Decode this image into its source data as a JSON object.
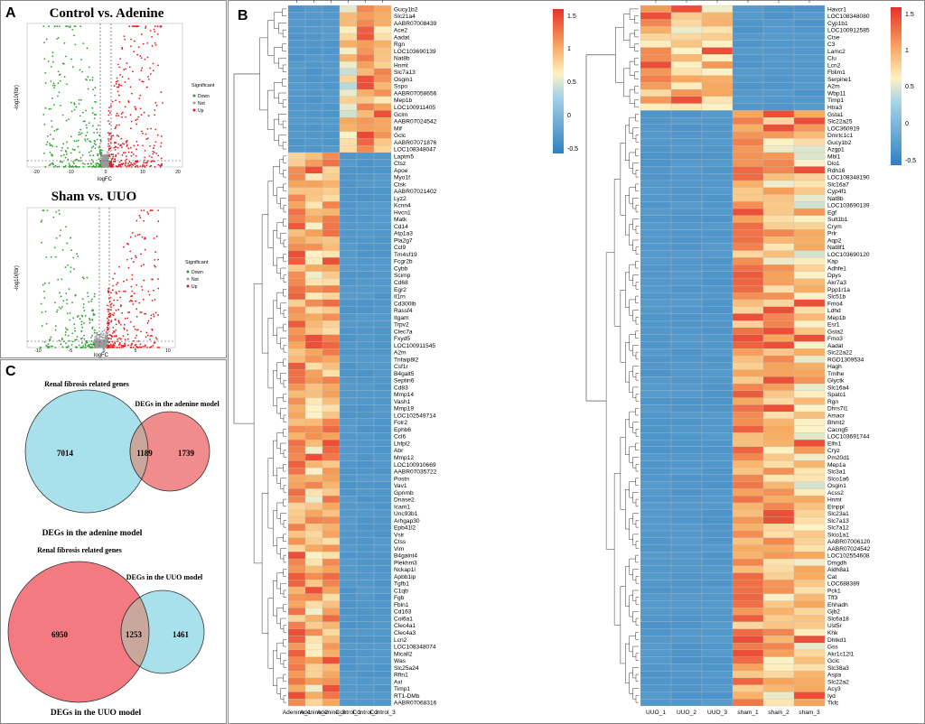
{
  "panels": {
    "a": {
      "label": "A",
      "volcano_top": {
        "title": "Control vs. Adenine",
        "xlabel": "logFC",
        "ylabel": "-log10(fdr)",
        "xticks": [
          "-20",
          "-10",
          "0",
          "10",
          "20"
        ],
        "legend_title": "Significant",
        "legend": [
          {
            "name": "Down",
            "color": "#2ca02c"
          },
          {
            "name": "Not",
            "color": "#9a9a9a"
          },
          {
            "name": "Up",
            "color": "#e31a1c"
          }
        ]
      },
      "volcano_bottom": {
        "title": "Sham vs. UUO",
        "xlabel": "logFC",
        "ylabel": "-log10(fdr)",
        "xticks": [
          "-10",
          "-5",
          "0",
          "5",
          "10"
        ],
        "legend_title": "Significant",
        "legend": [
          {
            "name": "Down",
            "color": "#2ca02c"
          },
          {
            "name": "Not",
            "color": "#9a9a9a"
          },
          {
            "name": "Up",
            "color": "#e31a1c"
          }
        ]
      }
    },
    "b": {
      "label": "B"
    },
    "c": {
      "label": "C",
      "venn_top": {
        "left_title": "Renal fibrosis related genes",
        "right_title": "DEGs in the adenine model",
        "left_only": "7014",
        "overlap": "1189",
        "right_only": "1739",
        "caption": "DEGs in the adenine model"
      },
      "venn_bottom": {
        "left_title": "Renal fibrosis related genes",
        "right_title": "DEGs in the UUO model",
        "left_only": "6950",
        "overlap": "1253",
        "right_only": "1461",
        "caption": "DEGs in the UUO model"
      }
    }
  },
  "colorbar": {
    "ticks": [
      "1.5",
      "1",
      "0.5",
      "0",
      "-0.5"
    ]
  },
  "chart_data": [
    {
      "type": "heatmap",
      "title": "",
      "columns": [
        "Adenine_1",
        "Adenine_2",
        "Adenine_3",
        "Control_1",
        "Control_2",
        "Control_3"
      ],
      "value_range": [
        -1,
        1.6
      ],
      "groups": [
        {
          "genes": [
            "Gucy1b2",
            "Slc21a4",
            "AABR07008439",
            "Ace2",
            "Aadat",
            "Rgn",
            "LOC103690139",
            "Nat8b",
            "Hnmt",
            "Slc7a13",
            "Osgin1",
            "Sspo",
            "AABR07058656",
            "Mep1b",
            "LOC100911405",
            "Gclm",
            "AABR07024542",
            "Mif",
            "Gclc",
            "AABR07071876",
            "LOC108348047"
          ],
          "values": [
            -0.6,
            -0.6,
            -0.6,
            0.4,
            1.0,
            0.6
          ]
        },
        {
          "genes": [
            "Laptm5",
            "Ctsz",
            "Apoe",
            "Myo1f",
            "Ctsk",
            "AABR07021402",
            "Lyz2",
            "Kcnn4",
            "Hvcn1",
            "Matk",
            "Cd14",
            "Atp1a3",
            "Pla2g7",
            "Ccl9",
            "Tm4sf19",
            "Fcgr2b",
            "Cybb",
            "Scimp",
            "Cd68",
            "Egr2",
            "Il1rn",
            "Cd300lb",
            "Rassf4",
            "Itgam",
            "Trpv2",
            "Clec7a",
            "Fxyd5",
            "LOC100911545",
            "A2m",
            "Tnfaip8l2",
            "Csf1r",
            "B4galt5",
            "Septin6",
            "Cd83",
            "Mmp14",
            "Vash1",
            "Mmp19",
            "LOC102549714",
            "Folr2",
            "Ephb6",
            "Ccl6",
            "Lhfpl2",
            "Abr",
            "Mmp12",
            "LOC100910669",
            "AABR07035722",
            "Postn",
            "Vav1",
            "Gpnmb",
            "Dnase2",
            "Icam1",
            "Unc93b1",
            "Arhgap30",
            "Epb41l2",
            "Vsir",
            "Ctss",
            "Vim",
            "B4galnt4",
            "Plekhm3",
            "Nckap1l",
            "Apbb1ip",
            "Tgfb1",
            "C1qb",
            "Fgb",
            "Fbln1",
            "Cd163",
            "Col6a1",
            "Clec4a1",
            "Clec4a3",
            "Lcn2",
            "LOC108348074",
            "Micall2",
            "Was",
            "Slc25a24",
            "Rftn1",
            "Axl",
            "Timp1",
            "RT1-DMb",
            "AABR07068316"
          ],
          "values": [
            0.9,
            0.6,
            0.8,
            -0.6,
            -0.6,
            -0.6
          ]
        }
      ]
    },
    {
      "type": "heatmap",
      "title": "",
      "columns": [
        "UUO_1",
        "UUO_2",
        "UUO_3",
        "sham_1",
        "sham_2",
        "sham_3"
      ],
      "value_range": [
        -0.7,
        1.6
      ],
      "groups": [
        {
          "genes": [
            "Havcr1",
            "LOC108348080",
            "Cyp1b1",
            "LOC100912585",
            "Ctse",
            "C3",
            "Lamc2",
            "Clu",
            "Lcn2",
            "Fblim1",
            "Serpine1",
            "A2m",
            "Wbp11",
            "Timp1",
            "Htra3"
          ],
          "values": [
            0.7,
            0.6,
            0.6,
            -0.6,
            -0.6,
            -0.6
          ]
        },
        {
          "genes": [
            "Gsta1",
            "Slc22a25",
            "LOC360919",
            "Dmrtc1c1",
            "Gucy1b2",
            "Azgp1",
            "Mbl1",
            "Dio1",
            "Rdh16",
            "LOC108348190",
            "Slc16a7",
            "Cyp4f1",
            "Nat8b",
            "LOC103690139",
            "Egf",
            "Sult1b1",
            "Crym",
            "Prlr",
            "Aqp2",
            "Nat8f1",
            "LOC103690120",
            "Kap",
            "Adhfe1",
            "Dpys",
            "Akr7a3",
            "Ppp1r1a",
            "Slc51b",
            "Fmo4",
            "Ldhd",
            "Mep1b",
            "Esr1",
            "Gsta2",
            "Fmo3",
            "Aadat",
            "Slc22a22",
            "RGD1309534",
            "Hagh",
            "Tmlhe",
            "Glyctk",
            "Slc16a4",
            "Spatc1",
            "Rgn",
            "Dhrs7l1",
            "Amacr",
            "Bhmt2",
            "Cacng5",
            "LOC103691744",
            "Elfn1",
            "Cryz",
            "Pm20d1",
            "Mep1a",
            "Slc3a1",
            "Slco1a6",
            "Osgin1",
            "Acss2",
            "Hnmt",
            "Etnppl",
            "Slc23a1",
            "Slc7a13",
            "Slc7a12",
            "Slco1a1",
            "AABR07006120",
            "AABR07024542",
            "LOC102554608",
            "Dmgdh",
            "Aldh8a1",
            "Cat",
            "LOC688389",
            "Pck1",
            "Tff3",
            "Ehhadh",
            "Gjb2",
            "Slc6a18",
            "Ust5r",
            "Khk",
            "Dhtkd1",
            "Gss",
            "Akr1c12l1",
            "Gclc",
            "Slc38a3",
            "Aspa",
            "Slc22a2",
            "Acy3",
            "Iyd",
            "Tkfc"
          ],
          "values": [
            -0.6,
            -0.6,
            -0.6,
            0.9,
            0.6,
            0.5
          ]
        }
      ]
    }
  ]
}
